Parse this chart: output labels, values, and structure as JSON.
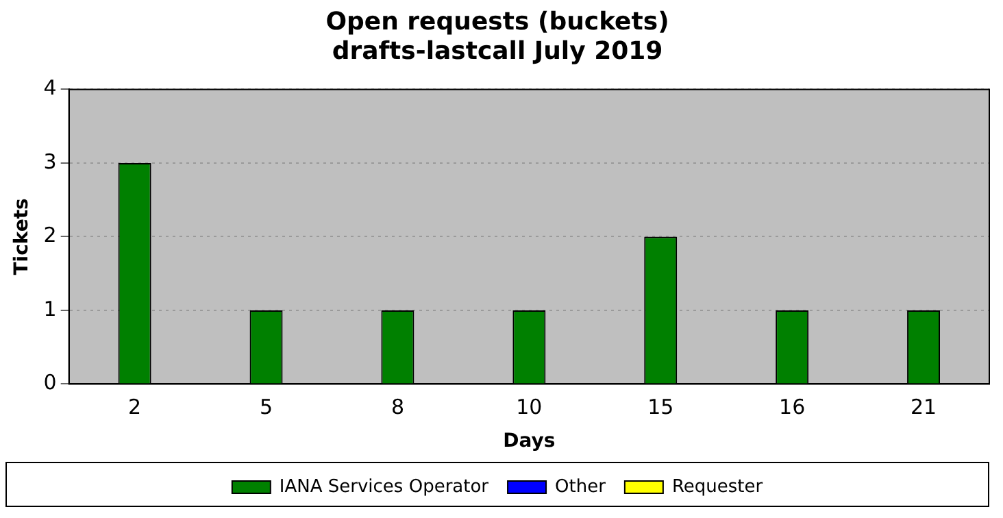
{
  "chart_data": {
    "type": "bar",
    "title": "Open requests (buckets)\ndrafts-lastcall July 2019",
    "xlabel": "Days",
    "ylabel": "Tickets",
    "categories": [
      "2",
      "5",
      "8",
      "10",
      "15",
      "16",
      "21"
    ],
    "stacked": true,
    "series": [
      {
        "name": "IANA Services Operator",
        "color": "#008000",
        "values": [
          3,
          1,
          1,
          1,
          2,
          1,
          1
        ]
      },
      {
        "name": "Other",
        "color": "#0000ff",
        "values": [
          0,
          0,
          0,
          0,
          0,
          0,
          0
        ]
      },
      {
        "name": "Requester",
        "color": "#ffff00",
        "values": [
          0,
          0,
          0,
          0,
          0,
          0,
          0
        ]
      }
    ],
    "ylim": [
      0,
      4
    ],
    "yticks": [
      0,
      1,
      2,
      3,
      4
    ],
    "grid": "y",
    "legend": "bottom"
  }
}
